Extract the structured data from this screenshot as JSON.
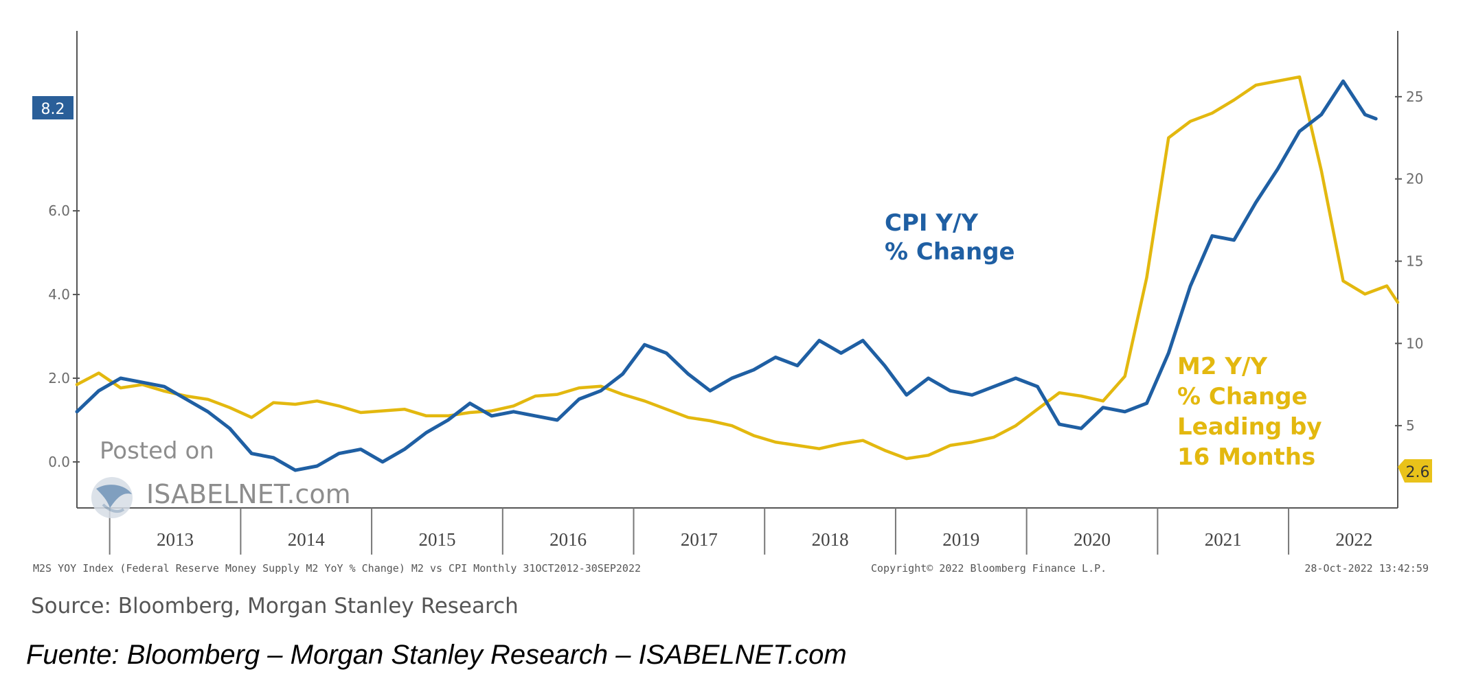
{
  "chart_data": {
    "type": "line",
    "left_axis": {
      "ticks": [
        "0.0",
        "2.0",
        "4.0",
        "6.0"
      ],
      "ylim": [
        -1.1,
        10.3
      ]
    },
    "right_axis": {
      "ticks": [
        "5",
        "10",
        "15",
        "20",
        "25"
      ],
      "ylim": [
        0,
        29
      ]
    },
    "x_axis": {
      "labels": [
        "2013",
        "2014",
        "2015",
        "2016",
        "2017",
        "2018",
        "2019",
        "2020",
        "2021",
        "2022"
      ],
      "xlim": [
        "2012-10",
        "2022-11"
      ]
    },
    "series": [
      {
        "name": "CPI Y/Y % Change",
        "axis": "left",
        "color": "#1f5fa3",
        "last_value": "8.2",
        "points": [
          [
            "2012-10",
            1.2
          ],
          [
            "2012-12",
            1.7
          ],
          [
            "2013-02",
            2.0
          ],
          [
            "2013-04",
            1.9
          ],
          [
            "2013-06",
            1.8
          ],
          [
            "2013-08",
            1.5
          ],
          [
            "2013-10",
            1.2
          ],
          [
            "2013-12",
            0.8
          ],
          [
            "2014-02",
            0.2
          ],
          [
            "2014-04",
            0.1
          ],
          [
            "2014-06",
            -0.2
          ],
          [
            "2014-08",
            -0.1
          ],
          [
            "2014-10",
            0.2
          ],
          [
            "2014-12",
            0.3
          ],
          [
            "2015-02",
            0.0
          ],
          [
            "2015-04",
            0.3
          ],
          [
            "2015-06",
            0.7
          ],
          [
            "2015-08",
            1.0
          ],
          [
            "2015-10",
            1.4
          ],
          [
            "2015-12",
            1.1
          ],
          [
            "2016-02",
            1.2
          ],
          [
            "2016-04",
            1.1
          ],
          [
            "2016-06",
            1.0
          ],
          [
            "2016-08",
            1.5
          ],
          [
            "2016-10",
            1.7
          ],
          [
            "2016-12",
            2.1
          ],
          [
            "2017-02",
            2.8
          ],
          [
            "2017-04",
            2.6
          ],
          [
            "2017-06",
            2.1
          ],
          [
            "2017-08",
            1.7
          ],
          [
            "2017-10",
            2.0
          ],
          [
            "2017-12",
            2.2
          ],
          [
            "2018-02",
            2.5
          ],
          [
            "2018-04",
            2.3
          ],
          [
            "2018-06",
            2.9
          ],
          [
            "2018-08",
            2.6
          ],
          [
            "2018-10",
            2.9
          ],
          [
            "2018-12",
            2.3
          ],
          [
            "2019-02",
            1.6
          ],
          [
            "2019-04",
            2.0
          ],
          [
            "2019-06",
            1.7
          ],
          [
            "2019-08",
            1.6
          ],
          [
            "2019-10",
            1.8
          ],
          [
            "2019-12",
            2.0
          ],
          [
            "2020-02",
            1.8
          ],
          [
            "2020-04",
            0.9
          ],
          [
            "2020-06",
            0.8
          ],
          [
            "2020-08",
            1.3
          ],
          [
            "2020-10",
            1.2
          ],
          [
            "2020-12",
            1.4
          ],
          [
            "2021-02",
            2.6
          ],
          [
            "2021-04",
            4.2
          ],
          [
            "2021-06",
            5.4
          ],
          [
            "2021-08",
            5.3
          ],
          [
            "2021-10",
            6.2
          ],
          [
            "2021-12",
            7.0
          ],
          [
            "2022-02",
            7.9
          ],
          [
            "2022-04",
            8.3
          ],
          [
            "2022-06",
            9.1
          ],
          [
            "2022-08",
            8.3
          ],
          [
            "2022-09",
            8.2
          ]
        ]
      },
      {
        "name": "M2 Y/Y % Change Leading by 16 Months",
        "axis": "right",
        "color": "#e3b80f",
        "last_value": "2.6",
        "points": [
          [
            "2012-10",
            7.5
          ],
          [
            "2012-12",
            8.2
          ],
          [
            "2013-02",
            7.3
          ],
          [
            "2013-04",
            7.5
          ],
          [
            "2013-06",
            7.1
          ],
          [
            "2013-08",
            6.8
          ],
          [
            "2013-10",
            6.6
          ],
          [
            "2013-12",
            6.1
          ],
          [
            "2014-02",
            5.5
          ],
          [
            "2014-04",
            6.4
          ],
          [
            "2014-06",
            6.3
          ],
          [
            "2014-08",
            6.5
          ],
          [
            "2014-10",
            6.2
          ],
          [
            "2014-12",
            5.8
          ],
          [
            "2015-02",
            5.9
          ],
          [
            "2015-04",
            6.0
          ],
          [
            "2015-06",
            5.6
          ],
          [
            "2015-08",
            5.6
          ],
          [
            "2015-10",
            5.8
          ],
          [
            "2015-12",
            5.9
          ],
          [
            "2016-02",
            6.2
          ],
          [
            "2016-04",
            6.8
          ],
          [
            "2016-06",
            6.9
          ],
          [
            "2016-08",
            7.3
          ],
          [
            "2016-10",
            7.4
          ],
          [
            "2016-12",
            6.9
          ],
          [
            "2017-02",
            6.5
          ],
          [
            "2017-04",
            6.0
          ],
          [
            "2017-06",
            5.5
          ],
          [
            "2017-08",
            5.3
          ],
          [
            "2017-10",
            5.0
          ],
          [
            "2017-12",
            4.4
          ],
          [
            "2018-02",
            4.0
          ],
          [
            "2018-04",
            3.8
          ],
          [
            "2018-06",
            3.6
          ],
          [
            "2018-08",
            3.9
          ],
          [
            "2018-10",
            4.1
          ],
          [
            "2018-12",
            3.5
          ],
          [
            "2019-02",
            3.0
          ],
          [
            "2019-04",
            3.2
          ],
          [
            "2019-06",
            3.8
          ],
          [
            "2019-08",
            4.0
          ],
          [
            "2019-10",
            4.3
          ],
          [
            "2019-12",
            5.0
          ],
          [
            "2020-02",
            6.0
          ],
          [
            "2020-04",
            7.0
          ],
          [
            "2020-06",
            6.8
          ],
          [
            "2020-08",
            6.5
          ],
          [
            "2020-10",
            8.0
          ],
          [
            "2020-12",
            14.0
          ],
          [
            "2021-02",
            22.5
          ],
          [
            "2021-04",
            23.5
          ],
          [
            "2021-06",
            24.0
          ],
          [
            "2021-08",
            24.8
          ],
          [
            "2021-10",
            25.7
          ],
          [
            "2022-02",
            26.2
          ],
          [
            "2022-04",
            20.5
          ],
          [
            "2022-06",
            13.8
          ],
          [
            "2022-08",
            13.0
          ],
          [
            "2022-10",
            13.5
          ],
          [
            "2022-11",
            12.5
          ]
        ]
      }
    ]
  },
  "labels": {
    "left_value_badge": "8.2",
    "right_value_badge": "2.6",
    "cpi_line1": "CPI Y/Y",
    "cpi_line2": "% Change",
    "m2_line1": "M2 Y/Y",
    "m2_line2": "% Change",
    "m2_line3": "Leading by",
    "m2_line4": "16 Months",
    "watermark_posted": "Posted on",
    "watermark_site": "ISABELNET.com",
    "footer_left": "M2S YOY Index (Federal Reserve Money Supply M2 YoY % Change) M2 vs CPI Monthly 31OCT2012-30SEP2022",
    "footer_center": "Copyright© 2022 Bloomberg Finance L.P.",
    "footer_right": "28-Oct-2022 13:42:59",
    "source": "Source: Bloomberg, Morgan Stanley Research",
    "fuente": "Fuente: Bloomberg – Morgan Stanley Research – ISABELNET.com"
  }
}
